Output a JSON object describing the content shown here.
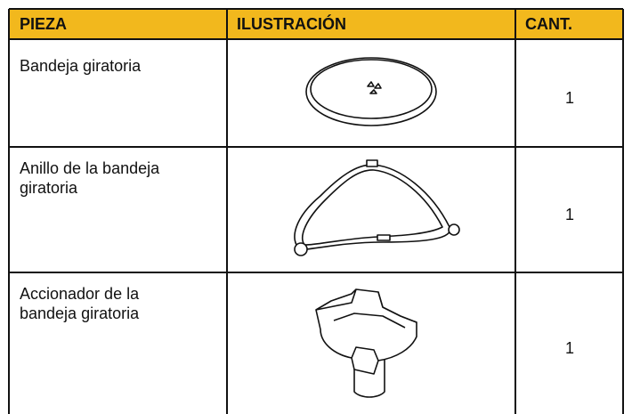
{
  "table": {
    "header": [
      "PIEZA",
      "ILUSTRACIÓN",
      "CANT."
    ],
    "rows": [
      {
        "pieza": [
          "Bandeja giratoria"
        ],
        "cantidad": "1"
      },
      {
        "pieza": [
          "Anillo de la bandeja",
          "giratoria"
        ],
        "cantidad": "1"
      },
      {
        "pieza": [
          "Accionador de la",
          "bandeja giratoria"
        ],
        "cantidad": "1"
      }
    ]
  }
}
